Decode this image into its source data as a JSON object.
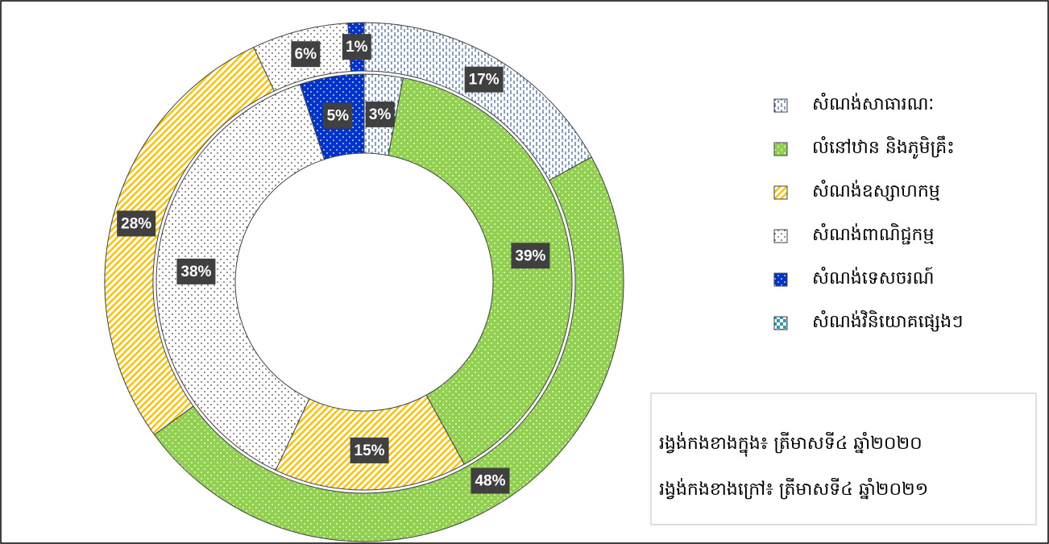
{
  "chart_data": {
    "type": "donut",
    "categories": [
      "សំណង់សាធារណៈ",
      "លំនៅឋាន និងភូមិគ្រឹះ",
      "សំណង់ឧស្សាហកម្ម",
      "សំណង់ពាណិជ្ជកម្ម",
      "សំណង់ទេសចរណ៍",
      "សំណង់វិនិយោគផ្សេងៗ"
    ],
    "backgrounds": [
      "#ffffff",
      "#92d050",
      "#ffffff",
      "#ffffff",
      "#0033cc",
      "#ffffff"
    ],
    "colors": [
      "#2e5cb8",
      "#ffffff",
      "#ffc000",
      "#404040",
      "#ffffff",
      "#2e9cb8"
    ],
    "patterns": [
      "dash",
      "dots",
      "stripes",
      "dots",
      "dots",
      "check"
    ],
    "series": [
      {
        "name": "រង្វង់កងខាងក្នុង៖ ត្រីមាសទី៤ ឆ្នាំ២០២០",
        "values": [
          3,
          39,
          15,
          38,
          5,
          null
        ],
        "value_labels": [
          "3%",
          "39%",
          "15%",
          "38%",
          "5%",
          null
        ]
      },
      {
        "name": "រង្វង់កងខាងក្រៅ៖ ត្រីមាសទី៤ ឆ្នាំ២០២១",
        "values": [
          17,
          48,
          28,
          6,
          1,
          null
        ],
        "value_labels": [
          "17%",
          "48%",
          "28%",
          "6%",
          "1%",
          null
        ]
      }
    ]
  }
}
